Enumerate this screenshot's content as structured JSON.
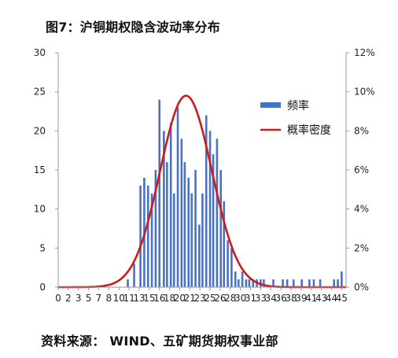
{
  "header": {
    "title": "图7：沪铜期权隐含波动率分布"
  },
  "footer": {
    "source": "资料来源：  WIND、五矿期货期权事业部"
  },
  "legend": {
    "bars_label": "频率",
    "line_label": "概率密度"
  },
  "colors": {
    "bars": "#4a72c4",
    "line": "#cc1b1b",
    "axis": "#9a9a9a"
  },
  "chart_data": {
    "type": "bar",
    "x_ticks": [
      "0",
      "2",
      "3",
      "5",
      "7",
      "8",
      "10",
      "11",
      "13",
      "15",
      "16",
      "18",
      "20",
      "21",
      "23",
      "25",
      "26",
      "28",
      "30",
      "31",
      "33",
      "34",
      "36",
      "38",
      "39",
      "41",
      "43",
      "44",
      "45"
    ],
    "y_left_ticks": [
      "0",
      "5",
      "10",
      "15",
      "20",
      "25",
      "30"
    ],
    "y_right_ticks": [
      "0%",
      "2%",
      "4%",
      "6%",
      "8%",
      "10%",
      "12%"
    ],
    "ylim_left": [
      0,
      30
    ],
    "ylim_right": [
      0,
      0.12
    ],
    "series": [
      {
        "name": "频率",
        "type": "bar",
        "x": [
          11,
          12,
          13,
          13.6,
          14.2,
          14.8,
          15.4,
          16,
          16.7,
          17.2,
          17.8,
          18.3,
          18.9,
          19.5,
          20,
          20.6,
          21.1,
          21.7,
          22.3,
          22.8,
          23.4,
          24,
          24.5,
          25.1,
          25.7,
          26.2,
          26.8,
          27.4,
          28,
          28.5,
          29.1,
          29.7,
          30.2,
          30.8,
          31.4,
          32,
          32.5,
          34,
          35.5,
          36.2,
          37.2,
          38.5,
          39.7,
          40.4,
          41.4,
          43.6,
          44.2,
          44.8
        ],
        "values": [
          1,
          3,
          13,
          14,
          13,
          12,
          15,
          24,
          20,
          16,
          21,
          12,
          23,
          19,
          16,
          14,
          12,
          15,
          8,
          12,
          22,
          20,
          17,
          19,
          15,
          11,
          6,
          5,
          2,
          1,
          2,
          1,
          1,
          1,
          1,
          1,
          1,
          1,
          1,
          1,
          1,
          1,
          1,
          1,
          1,
          1,
          1,
          2
        ]
      },
      {
        "name": "概率密度",
        "type": "line",
        "axis": "right",
        "mean": 20.2,
        "std": 4.1,
        "peak": 0.098
      }
    ]
  }
}
